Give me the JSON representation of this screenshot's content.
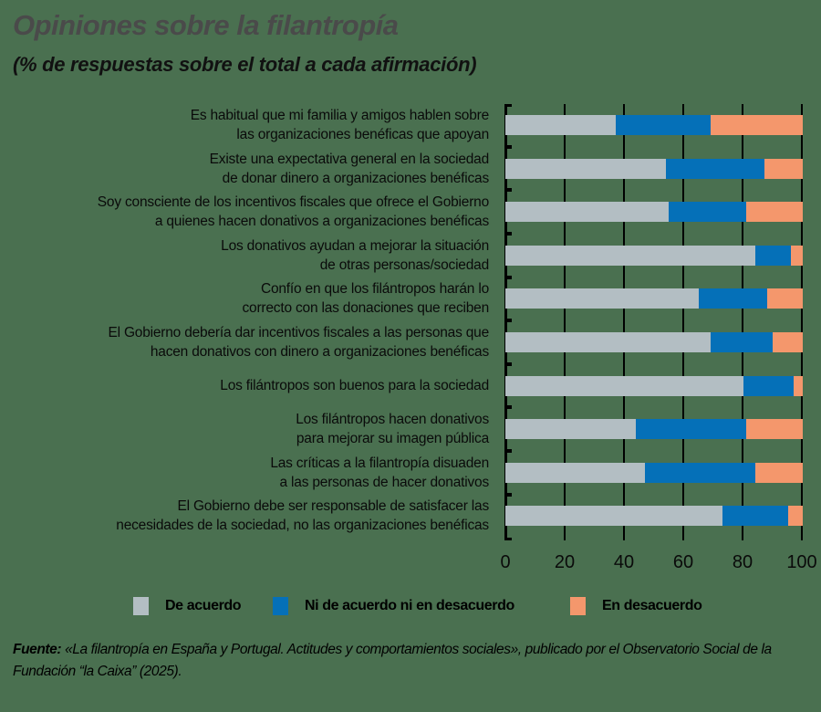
{
  "title": "Opiniones sobre la filantropía",
  "subtitle": "(% de respuestas sobre el total a cada afirmación)",
  "legend": [
    {
      "label": "De acuerdo",
      "color": "#b3bec3"
    },
    {
      "label": "Ni de acuerdo ni en desacuerdo",
      "color": "#0570b8"
    },
    {
      "label": "En desacuerdo",
      "color": "#f4976c"
    }
  ],
  "axis": {
    "ticks": [
      "0",
      "20",
      "40",
      "60",
      "80",
      "100"
    ]
  },
  "rows": [
    {
      "line1": "Es habitual que mi familia y amigos hablen sobre",
      "line2": "las organizaciones benéficas que apoyan"
    },
    {
      "line1": "Existe una expectativa general en la sociedad",
      "line2": "de donar dinero a organizaciones benéficas"
    },
    {
      "line1": "Soy consciente de los incentivos fiscales que ofrece el Gobierno",
      "line2": "a quienes hacen donativos a organizaciones benéficas"
    },
    {
      "line1": "Los donativos ayudan a mejorar la situación",
      "line2": "de otras personas/sociedad"
    },
    {
      "line1": "Confío en que los filántropos harán lo",
      "line2": "correcto con las donaciones que reciben"
    },
    {
      "line1": "El Gobierno debería dar incentivos fiscales a las personas que",
      "line2": "hacen donativos con dinero a organizaciones benéficas"
    },
    {
      "line1": "Los filántropos son buenos para la sociedad",
      "line2": ""
    },
    {
      "line1": "Los filántropos hacen donativos",
      "line2": "para mejorar su imagen pública"
    },
    {
      "line1": "Las críticas a la filantropía disuaden",
      "line2": "a las personas de hacer donativos"
    },
    {
      "line1": "El Gobierno debe ser responsable de satisfacer las",
      "line2": "necesidades de la sociedad, no las organizaciones benéficas"
    }
  ],
  "source": {
    "label": "Fuente:",
    "text": " «La filantropía en España y Portugal. Actitudes y comportamientos sociales», publicado por el Observatorio Social de la Fundación “la Caixa” (2025)."
  },
  "chart_data": {
    "type": "bar",
    "orientation": "horizontal",
    "stacked": true,
    "title": "Opiniones sobre la filantropía",
    "subtitle": "(% de respuestas sobre el total a cada afirmación)",
    "xlabel": "",
    "ylabel": "",
    "xlim": [
      0,
      100
    ],
    "xticks": [
      0,
      20,
      40,
      60,
      80,
      100
    ],
    "grid": "vertical gridlines at each tick",
    "legend_position": "bottom",
    "categories": [
      "Es habitual que mi familia y amigos hablen sobre las organizaciones benéficas que apoyan",
      "Existe una expectativa general en la sociedad de donar dinero a organizaciones benéficas",
      "Soy consciente de los incentivos fiscales que ofrece el Gobierno a quienes hacen donativos a organizaciones benéficas",
      "Los donativos ayudan a mejorar la situación de otras personas/sociedad",
      "Confío en que los filántropos harán lo correcto con las donaciones que reciben",
      "El Gobierno debería dar incentivos fiscales a las personas que hacen donativos con dinero a organizaciones benéficas",
      "Los filántropos son buenos para la sociedad",
      "Los filántropos hacen donativos para mejorar su imagen pública",
      "Las críticas a la filantropía disuaden a las personas de hacer donativos",
      "El Gobierno debe ser responsable de satisfacer las necesidades de la sociedad, no las organizaciones benéficas"
    ],
    "series": [
      {
        "name": "De acuerdo",
        "color": "#b3bec3",
        "values": [
          37,
          54,
          55,
          84,
          65,
          69,
          80,
          44,
          47,
          73
        ]
      },
      {
        "name": "Ni de acuerdo ni en desacuerdo",
        "color": "#0570b8",
        "values": [
          32,
          33,
          26,
          12,
          23,
          21,
          17,
          37,
          37,
          22
        ]
      },
      {
        "name": "En desacuerdo",
        "color": "#f4976c",
        "values": [
          31,
          13,
          19,
          4,
          12,
          10,
          3,
          19,
          16,
          5
        ]
      }
    ],
    "source": "Fuente: «La filantropía en España y Portugal. Actitudes y comportamientos sociales», publicado por el Observatorio Social de la Fundación “la Caixa” (2025)."
  }
}
